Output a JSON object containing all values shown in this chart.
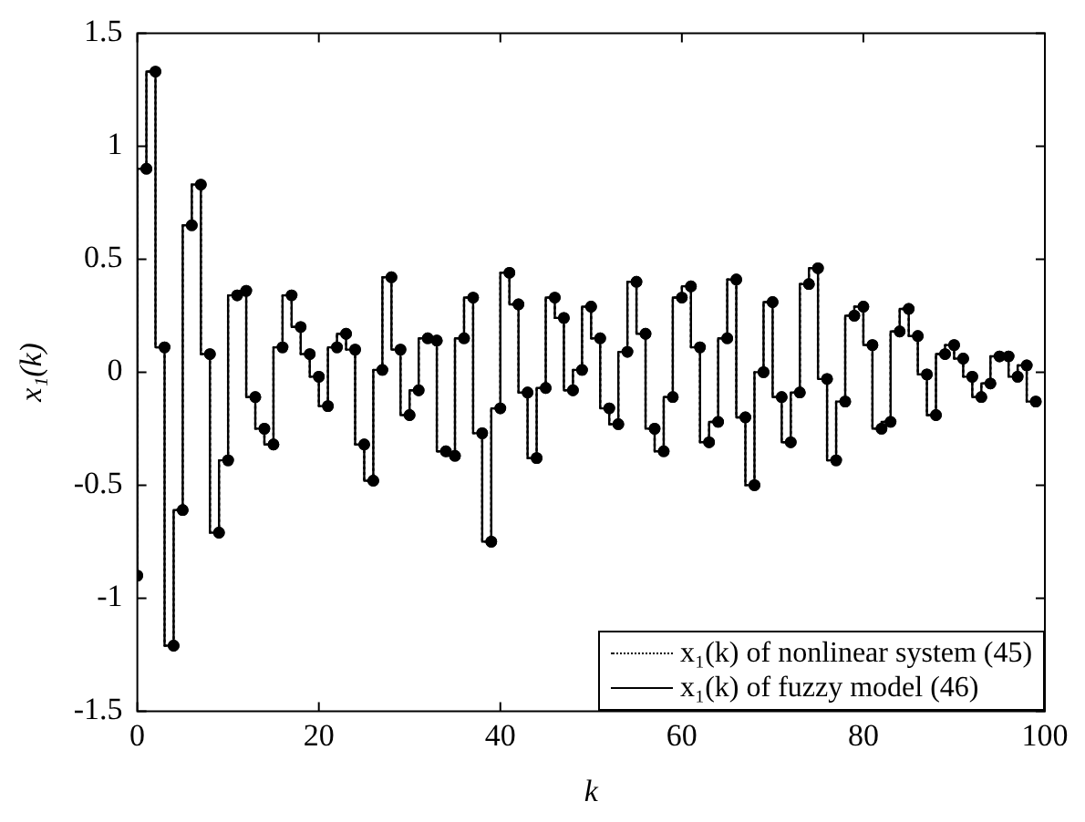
{
  "chart_data": {
    "type": "step",
    "xlabel": "k",
    "ylabel": "x₁(k)",
    "x": [
      0,
      1,
      2,
      3,
      4,
      5,
      6,
      7,
      8,
      9,
      10,
      11,
      12,
      13,
      14,
      15,
      16,
      17,
      18,
      19,
      20,
      21,
      22,
      23,
      24,
      25,
      26,
      27,
      28,
      29,
      30,
      31,
      32,
      33,
      34,
      35,
      36,
      37,
      38,
      39,
      40,
      41,
      42,
      43,
      44,
      45,
      46,
      47,
      48,
      49,
      50,
      51,
      52,
      53,
      54,
      55,
      56,
      57,
      58,
      59,
      60,
      61,
      62,
      63,
      64,
      65,
      66,
      67,
      68,
      69,
      70,
      71,
      72,
      73,
      74,
      75,
      76,
      77,
      78,
      79,
      80,
      81,
      82,
      83,
      84,
      85,
      86,
      87,
      88,
      89,
      90,
      91,
      92,
      93,
      94,
      95,
      96,
      97,
      98,
      99
    ],
    "series": [
      {
        "name": "x₁(k) of fuzzy model (46)",
        "color": "#000000",
        "line_style": "solid",
        "values": [
          -0.9,
          0.9,
          1.33,
          0.11,
          -1.21,
          -0.61,
          0.65,
          0.83,
          0.08,
          -0.71,
          -0.39,
          0.34,
          0.36,
          -0.11,
          -0.25,
          -0.32,
          0.11,
          0.34,
          0.2,
          0.08,
          -0.02,
          -0.15,
          0.11,
          0.17,
          0.1,
          -0.32,
          -0.48,
          0.01,
          0.42,
          0.1,
          -0.19,
          -0.08,
          0.15,
          0.14,
          -0.35,
          -0.37,
          0.15,
          0.33,
          -0.27,
          -0.75,
          -0.16,
          0.44,
          0.3,
          -0.09,
          -0.38,
          -0.07,
          0.33,
          0.24,
          -0.08,
          0.01,
          0.29,
          0.15,
          -0.16,
          -0.23,
          0.09,
          0.4,
          0.17,
          -0.25,
          -0.35,
          -0.11,
          0.33,
          0.38,
          0.11,
          -0.31,
          -0.22,
          0.15,
          0.41,
          -0.2,
          -0.5,
          0,
          0.31,
          -0.11,
          -0.31,
          -0.09,
          0.39,
          0.46,
          -0.03,
          -0.39,
          -0.13,
          0.25,
          0.29,
          0.12,
          -0.25,
          -0.22,
          0.18,
          0.28,
          0.16,
          -0.01,
          -0.19,
          0.08,
          0.12,
          0.06,
          -0.02,
          -0.11,
          -0.05,
          0.07,
          0.07,
          -0.02,
          0.03,
          -0.13
        ]
      },
      {
        "name": "x₁(k) of nonlinear system (45)",
        "color": "#000000",
        "line_style": "dotted",
        "values": [
          -0.9,
          0.9,
          1.33,
          0.11,
          -1.21,
          -0.61,
          0.65,
          0.83,
          0.08,
          -0.71,
          -0.39,
          0.34,
          0.36,
          -0.11,
          -0.25,
          -0.32,
          0.11,
          0.34,
          0.2,
          0.08,
          -0.02,
          -0.15,
          0.11,
          0.17,
          0.1,
          -0.32,
          -0.48,
          0.01,
          0.42,
          0.1,
          -0.19,
          -0.08,
          0.15,
          0.14,
          -0.35,
          -0.37,
          0.15,
          0.33,
          -0.27,
          -0.75,
          -0.16,
          0.44,
          0.3,
          -0.09,
          -0.38,
          -0.07,
          0.33,
          0.24,
          -0.08,
          0.01,
          0.29,
          0.15,
          -0.16,
          -0.23,
          0.09,
          0.4,
          0.17,
          -0.25,
          -0.35,
          -0.11,
          0.33,
          0.38,
          0.11,
          -0.31,
          -0.22,
          0.15,
          0.41,
          -0.2,
          -0.5,
          0,
          0.31,
          -0.11,
          -0.31,
          -0.09,
          0.39,
          0.46,
          -0.03,
          -0.39,
          -0.13,
          0.25,
          0.29,
          0.12,
          -0.25,
          -0.22,
          0.18,
          0.28,
          0.16,
          -0.01,
          -0.19,
          0.08,
          0.12,
          0.06,
          -0.02,
          -0.11,
          -0.05,
          0.07,
          0.07,
          -0.02,
          0.03,
          -0.13
        ]
      }
    ],
    "xlim": [
      0,
      100
    ],
    "xticks": [
      0,
      20,
      40,
      60,
      80,
      100
    ],
    "ylim": [
      -1.5,
      1.5
    ],
    "yticks": [
      -1.5,
      -1,
      -0.5,
      0,
      0.5,
      1,
      1.5
    ],
    "marker": "circle",
    "legend": "bottom right",
    "grid": false
  }
}
